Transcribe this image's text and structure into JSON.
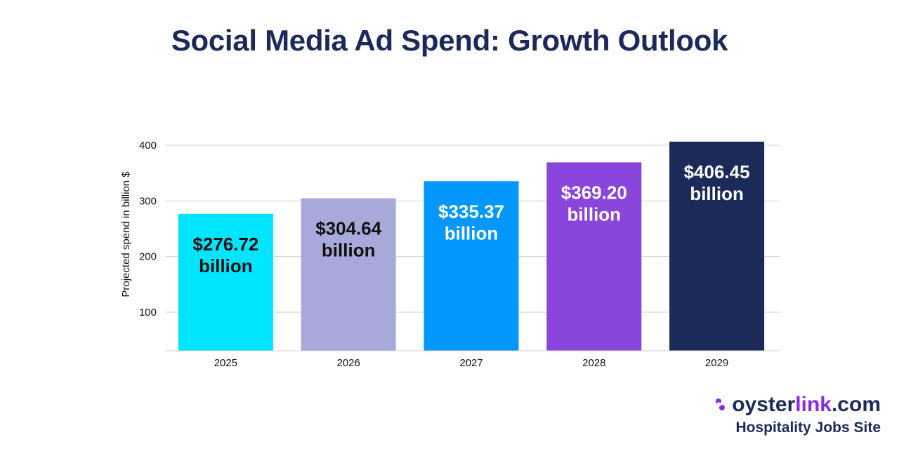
{
  "chart_data": {
    "type": "bar",
    "title": "Social Media Ad Spend: Growth Outlook",
    "xlabel": "",
    "ylabel": "Projected spend in billion $",
    "categories": [
      "2025",
      "2026",
      "2027",
      "2028",
      "2029"
    ],
    "values": [
      276.72,
      304.64,
      335.37,
      369.2,
      406.45
    ],
    "data_labels": [
      [
        "$276.72",
        "billion"
      ],
      [
        "$304.64",
        "billion"
      ],
      [
        "$335.37",
        "billion"
      ],
      [
        "$369.20",
        "billion"
      ],
      [
        "$406.45",
        "billion"
      ]
    ],
    "bar_colors": [
      "#00e5ff",
      "#a7a9db",
      "#0498ff",
      "#8a45dd",
      "#1c2a5a"
    ],
    "label_colors": [
      "#111111",
      "#111111",
      "#ffffff",
      "#ffffff",
      "#ffffff"
    ],
    "yticks": [
      100,
      200,
      300,
      400
    ],
    "ylim": [
      30,
      400
    ],
    "grid": true
  },
  "brand": {
    "name_main": "oyster",
    "name_accent": "link",
    "name_tld": ".com",
    "tagline": "Hospitality Jobs Site",
    "main_color": "#1c2a5a",
    "accent_color": "#8a2be2"
  }
}
